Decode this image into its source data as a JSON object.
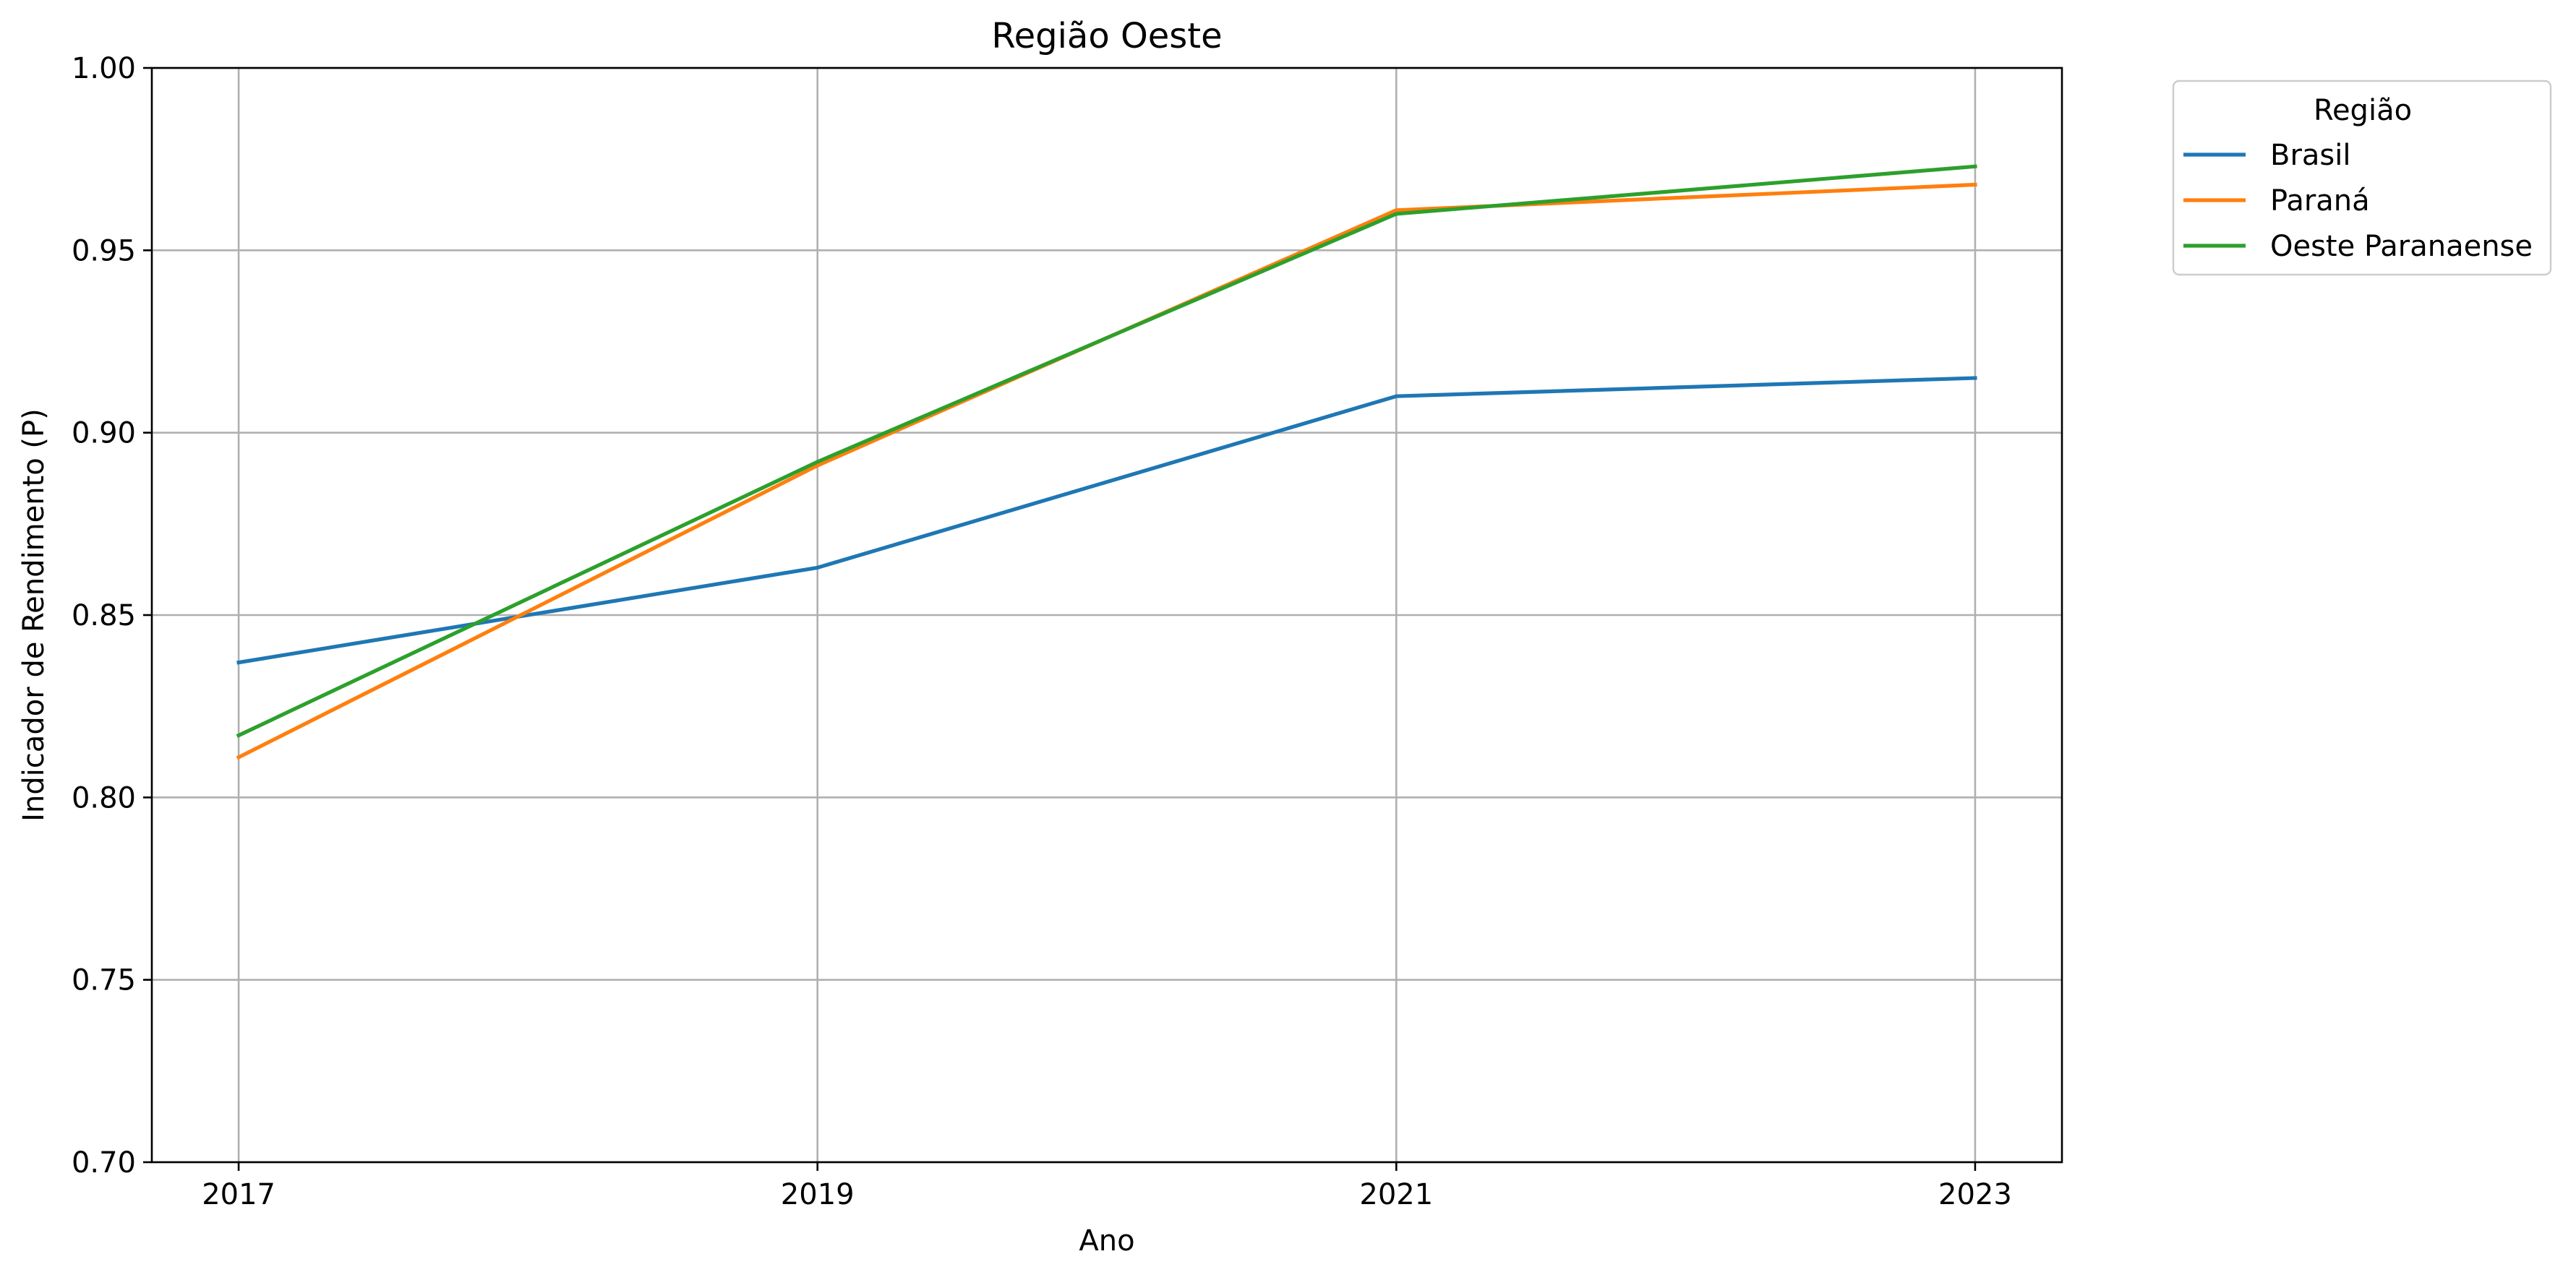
{
  "chart_data": {
    "type": "line",
    "title": "Região Oeste",
    "xlabel": "Ano",
    "ylabel": "Indicador de Rendimento (P)",
    "x": [
      2017,
      2019,
      2021,
      2023
    ],
    "x_tick_labels": [
      "2017",
      "2019",
      "2021",
      "2023"
    ],
    "xlim": [
      2016.7,
      2023.3
    ],
    "ylim": [
      0.7,
      1.0
    ],
    "y_ticks": [
      0.7,
      0.75,
      0.8,
      0.85,
      0.9,
      0.95,
      1.0
    ],
    "y_tick_labels": [
      "0.70",
      "0.75",
      "0.80",
      "0.85",
      "0.90",
      "0.95",
      "1.00"
    ],
    "grid": true,
    "legend": {
      "title": "Região",
      "placement": "outside top-right"
    },
    "series": [
      {
        "name": "Brasil",
        "color": "#1f77b4",
        "values": [
          0.837,
          0.863,
          0.91,
          0.915
        ]
      },
      {
        "name": "Paraná",
        "color": "#ff7f0e",
        "values": [
          0.811,
          0.891,
          0.961,
          0.968
        ]
      },
      {
        "name": "Oeste Paranaense",
        "color": "#2ca02c",
        "values": [
          0.817,
          0.892,
          0.96,
          0.973
        ]
      }
    ]
  }
}
